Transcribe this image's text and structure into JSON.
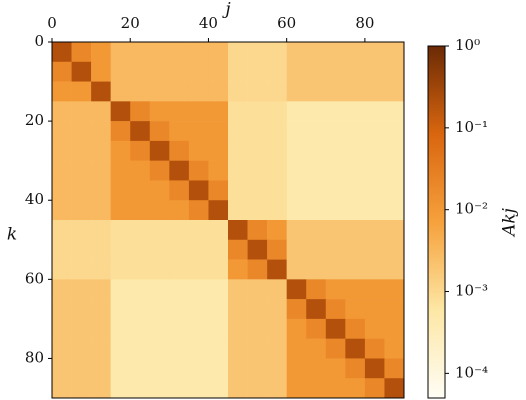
{
  "chart_data": {
    "type": "heatmap",
    "xlabel": "j",
    "ylabel": "k",
    "colorbar_label": "Akj",
    "xlim": [
      0,
      90
    ],
    "ylim": [
      0,
      90
    ],
    "y_inverted": true,
    "xticks": [
      0,
      20,
      40,
      60,
      80
    ],
    "yticks": [
      0,
      20,
      40,
      60,
      80
    ],
    "x_edges": [
      0,
      5,
      10,
      15,
      20,
      25,
      30,
      35,
      40,
      45,
      50,
      55,
      60,
      65,
      70,
      75,
      80,
      85,
      90
    ],
    "y_edges": [
      0,
      5,
      10,
      15,
      20,
      25,
      30,
      35,
      40,
      45,
      50,
      55,
      60,
      65,
      70,
      75,
      80,
      85,
      90
    ],
    "color_scale": "log",
    "clim": [
      5e-05,
      1
    ],
    "colormap": [
      "#fffdf5",
      "#fde7a5",
      "#f6a13c",
      "#d9660f",
      "#6b2a05"
    ],
    "cticks": [
      {
        "value": 1,
        "label": "10⁰"
      },
      {
        "value": 0.1,
        "label": "10⁻¹"
      },
      {
        "value": 0.01,
        "label": "10⁻²"
      },
      {
        "value": 0.001,
        "label": "10⁻³"
      },
      {
        "value": 0.0001,
        "label": "10⁻⁴"
      }
    ],
    "z": [
      [
        0.2,
        0.02,
        0.01,
        0.003,
        0.003,
        0.003,
        0.003,
        0.003,
        0.003,
        0.001,
        0.001,
        0.001,
        0.002,
        0.002,
        0.002,
        0.002,
        0.002,
        0.002
      ],
      [
        0.02,
        0.2,
        0.01,
        0.003,
        0.003,
        0.003,
        0.003,
        0.003,
        0.003,
        0.001,
        0.001,
        0.001,
        0.002,
        0.002,
        0.002,
        0.002,
        0.002,
        0.002
      ],
      [
        0.01,
        0.01,
        0.2,
        0.003,
        0.003,
        0.003,
        0.003,
        0.003,
        0.003,
        0.001,
        0.001,
        0.001,
        0.002,
        0.002,
        0.002,
        0.002,
        0.002,
        0.002
      ],
      [
        0.003,
        0.003,
        0.003,
        0.2,
        0.02,
        0.01,
        0.01,
        0.01,
        0.01,
        0.0008,
        0.0008,
        0.0008,
        0.0005,
        0.0005,
        0.0005,
        0.0005,
        0.0005,
        0.0005
      ],
      [
        0.003,
        0.003,
        0.003,
        0.02,
        0.2,
        0.02,
        0.01,
        0.01,
        0.01,
        0.0008,
        0.0008,
        0.0008,
        0.0005,
        0.0005,
        0.0005,
        0.0005,
        0.0005,
        0.0005
      ],
      [
        0.003,
        0.003,
        0.003,
        0.01,
        0.02,
        0.2,
        0.02,
        0.01,
        0.01,
        0.0008,
        0.0008,
        0.0008,
        0.0005,
        0.0005,
        0.0005,
        0.0005,
        0.0005,
        0.0005
      ],
      [
        0.003,
        0.003,
        0.003,
        0.01,
        0.01,
        0.02,
        0.2,
        0.02,
        0.01,
        0.0008,
        0.0008,
        0.0008,
        0.0005,
        0.0005,
        0.0005,
        0.0005,
        0.0005,
        0.0005
      ],
      [
        0.003,
        0.003,
        0.003,
        0.01,
        0.01,
        0.01,
        0.02,
        0.2,
        0.02,
        0.0008,
        0.0008,
        0.0008,
        0.0005,
        0.0005,
        0.0005,
        0.0005,
        0.0005,
        0.0005
      ],
      [
        0.003,
        0.003,
        0.003,
        0.01,
        0.01,
        0.01,
        0.01,
        0.02,
        0.2,
        0.0008,
        0.0008,
        0.0008,
        0.0005,
        0.0005,
        0.0005,
        0.0005,
        0.0005,
        0.0005
      ],
      [
        0.001,
        0.001,
        0.001,
        0.0008,
        0.0008,
        0.0008,
        0.0008,
        0.0008,
        0.0008,
        0.2,
        0.02,
        0.01,
        0.002,
        0.002,
        0.002,
        0.002,
        0.002,
        0.002
      ],
      [
        0.001,
        0.001,
        0.001,
        0.0008,
        0.0008,
        0.0008,
        0.0008,
        0.0008,
        0.0008,
        0.02,
        0.2,
        0.02,
        0.002,
        0.002,
        0.002,
        0.002,
        0.002,
        0.002
      ],
      [
        0.001,
        0.001,
        0.001,
        0.0008,
        0.0008,
        0.0008,
        0.0008,
        0.0008,
        0.0008,
        0.01,
        0.02,
        0.2,
        0.002,
        0.002,
        0.002,
        0.002,
        0.002,
        0.002
      ],
      [
        0.002,
        0.002,
        0.002,
        0.0005,
        0.0005,
        0.0005,
        0.0005,
        0.0005,
        0.0005,
        0.002,
        0.002,
        0.002,
        0.2,
        0.02,
        0.01,
        0.01,
        0.01,
        0.01
      ],
      [
        0.002,
        0.002,
        0.002,
        0.0005,
        0.0005,
        0.0005,
        0.0005,
        0.0005,
        0.0005,
        0.002,
        0.002,
        0.002,
        0.02,
        0.2,
        0.02,
        0.01,
        0.01,
        0.01
      ],
      [
        0.002,
        0.002,
        0.002,
        0.0005,
        0.0005,
        0.0005,
        0.0005,
        0.0005,
        0.0005,
        0.002,
        0.002,
        0.002,
        0.01,
        0.02,
        0.2,
        0.02,
        0.01,
        0.01
      ],
      [
        0.002,
        0.002,
        0.002,
        0.0005,
        0.0005,
        0.0005,
        0.0005,
        0.0005,
        0.0005,
        0.002,
        0.002,
        0.002,
        0.01,
        0.01,
        0.02,
        0.2,
        0.02,
        0.01
      ],
      [
        0.002,
        0.002,
        0.002,
        0.0005,
        0.0005,
        0.0005,
        0.0005,
        0.0005,
        0.0005,
        0.002,
        0.002,
        0.002,
        0.01,
        0.01,
        0.01,
        0.02,
        0.2,
        0.02
      ],
      [
        0.002,
        0.002,
        0.002,
        0.0005,
        0.0005,
        0.0005,
        0.0005,
        0.0005,
        0.0005,
        0.002,
        0.002,
        0.002,
        0.01,
        0.01,
        0.01,
        0.01,
        0.02,
        0.2
      ]
    ]
  }
}
